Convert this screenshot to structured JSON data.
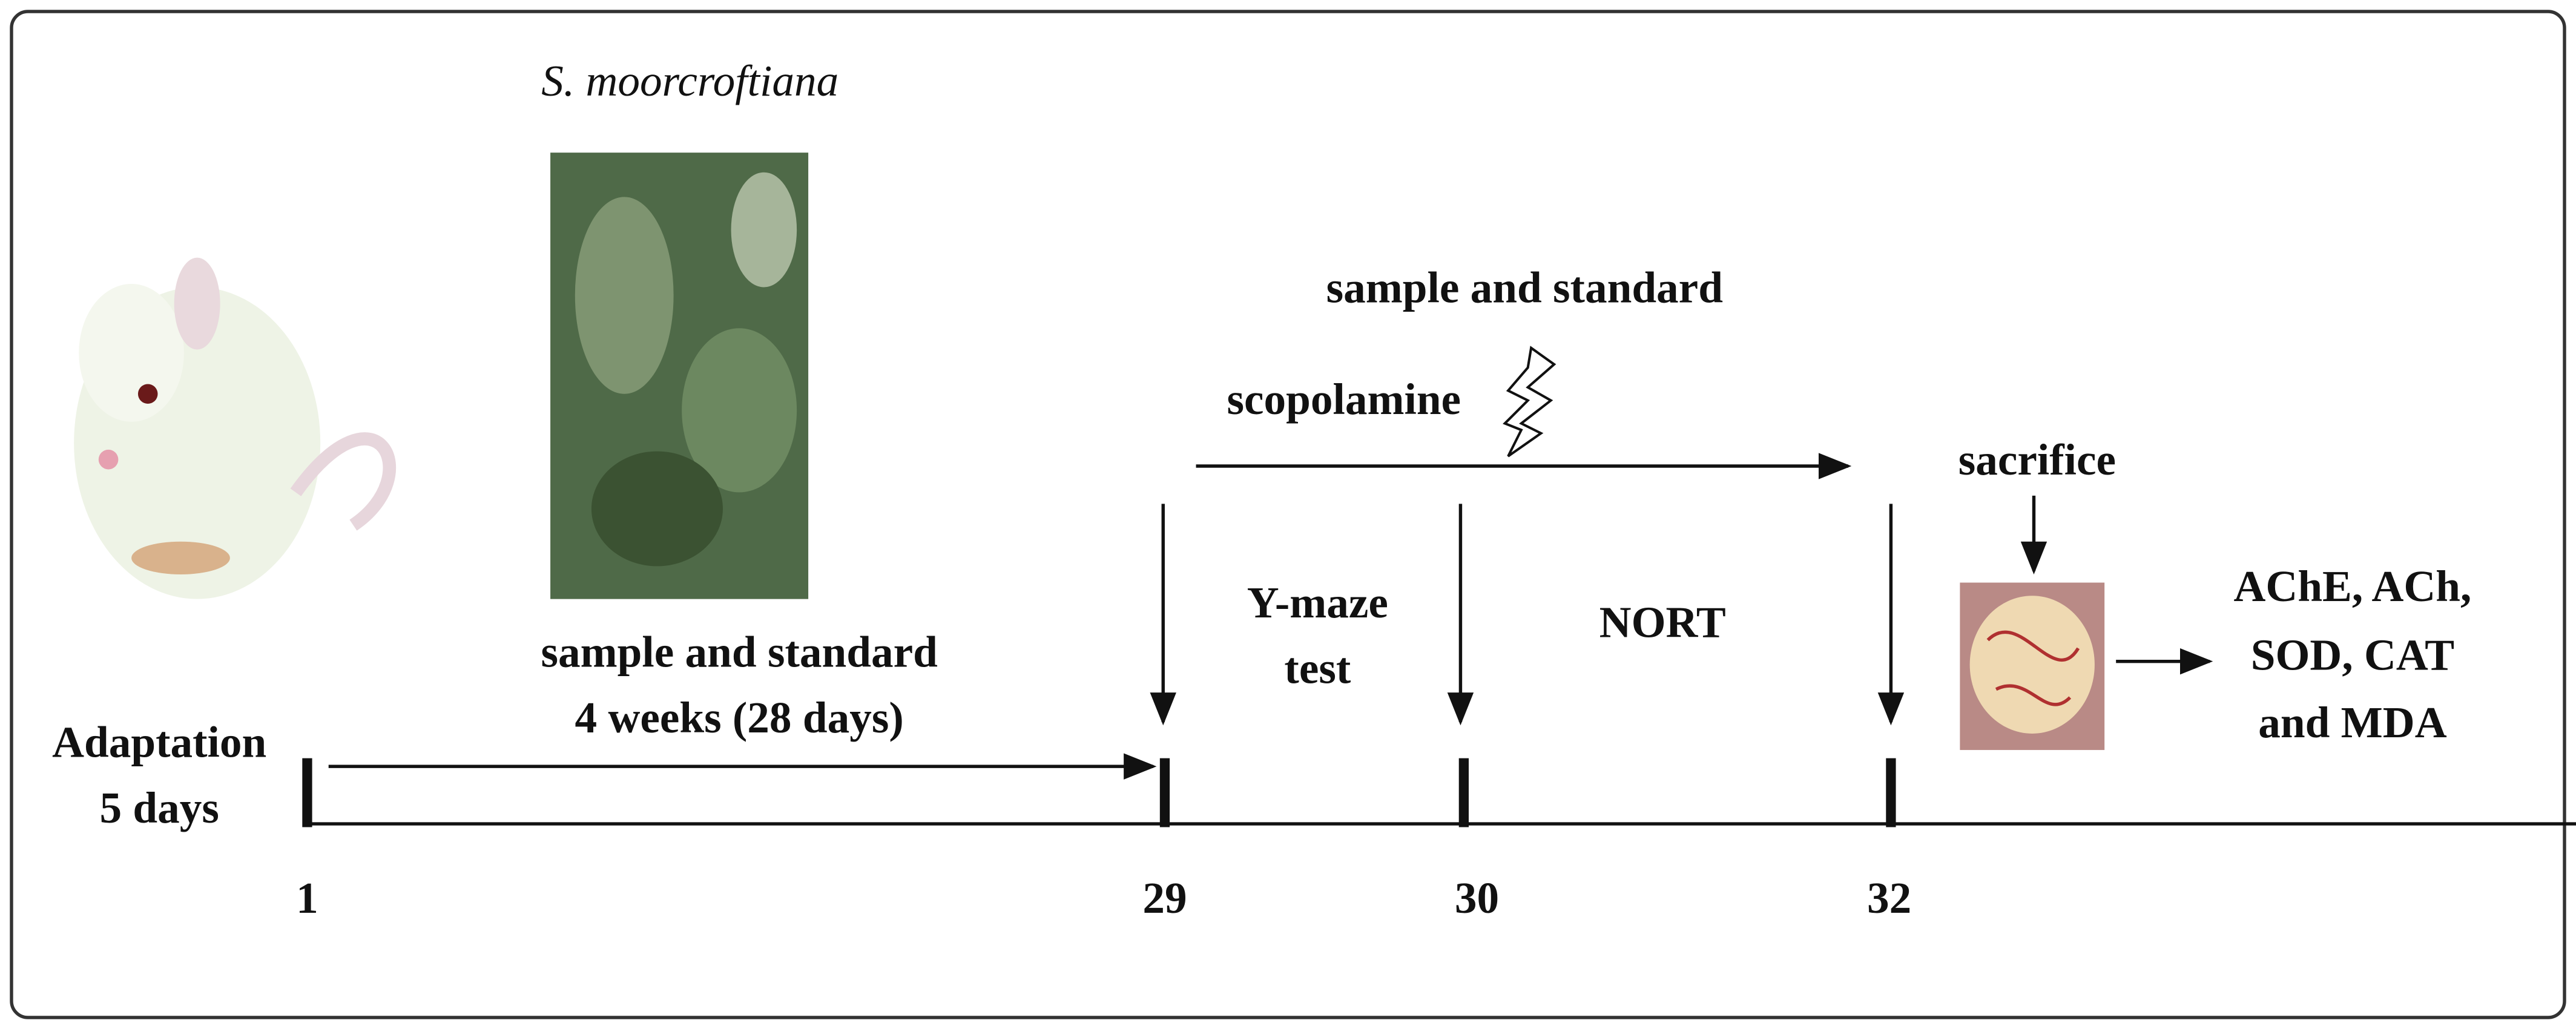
{
  "header": {
    "species": "S. moorcroftiana"
  },
  "labels": {
    "adaptation": [
      "Adaptation",
      "5 days"
    ],
    "pretreatment": [
      "sample  and standard",
      "4 weeks (28 days)"
    ],
    "treatment": "sample and standard",
    "inducer": "scopolamine",
    "test1": [
      "Y-maze",
      "test"
    ],
    "test2": "NORT",
    "sacrifice": "sacrifice",
    "assays": [
      "AChE, ACh,",
      "SOD, CAT",
      "and MDA"
    ]
  },
  "timeline": {
    "days": [
      "1",
      "29",
      "30",
      "32"
    ]
  }
}
